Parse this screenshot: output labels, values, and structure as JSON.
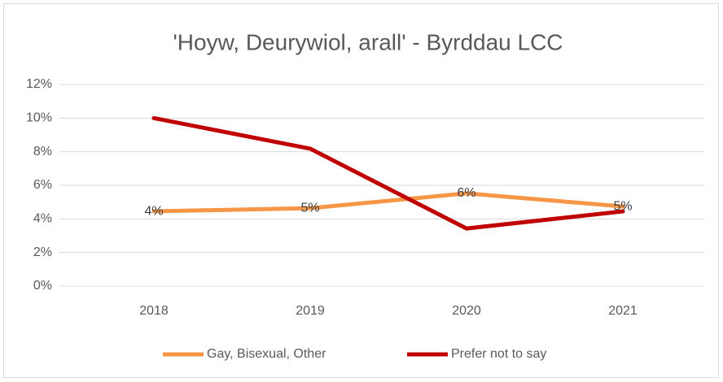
{
  "chart_data": {
    "type": "line",
    "title": "'Hoyw, Deurywiol, arall' - Byrddau LCC",
    "categories": [
      "2018",
      "2019",
      "2020",
      "2021"
    ],
    "series": [
      {
        "name": "Gay, Bisexual, Other",
        "color": "#f79646",
        "values": [
          4.45,
          4.64,
          5.52,
          4.74
        ],
        "value_labels": [
          "4%",
          "5%",
          "6%",
          "5%"
        ]
      },
      {
        "name": "Prefer not to say",
        "color": "#c00000",
        "values": [
          10.0,
          8.18,
          3.43,
          4.45
        ]
      }
    ],
    "ylim": [
      0,
      12
    ],
    "yticks": [
      {
        "value": 0,
        "label": "0%"
      },
      {
        "value": 2,
        "label": "2%"
      },
      {
        "value": 4,
        "label": "4%"
      },
      {
        "value": 6,
        "label": "6%"
      },
      {
        "value": 8,
        "label": "8%"
      },
      {
        "value": 10,
        "label": "10%"
      },
      {
        "value": 12,
        "label": "12%"
      }
    ],
    "grid": true,
    "legend": "bottom"
  }
}
